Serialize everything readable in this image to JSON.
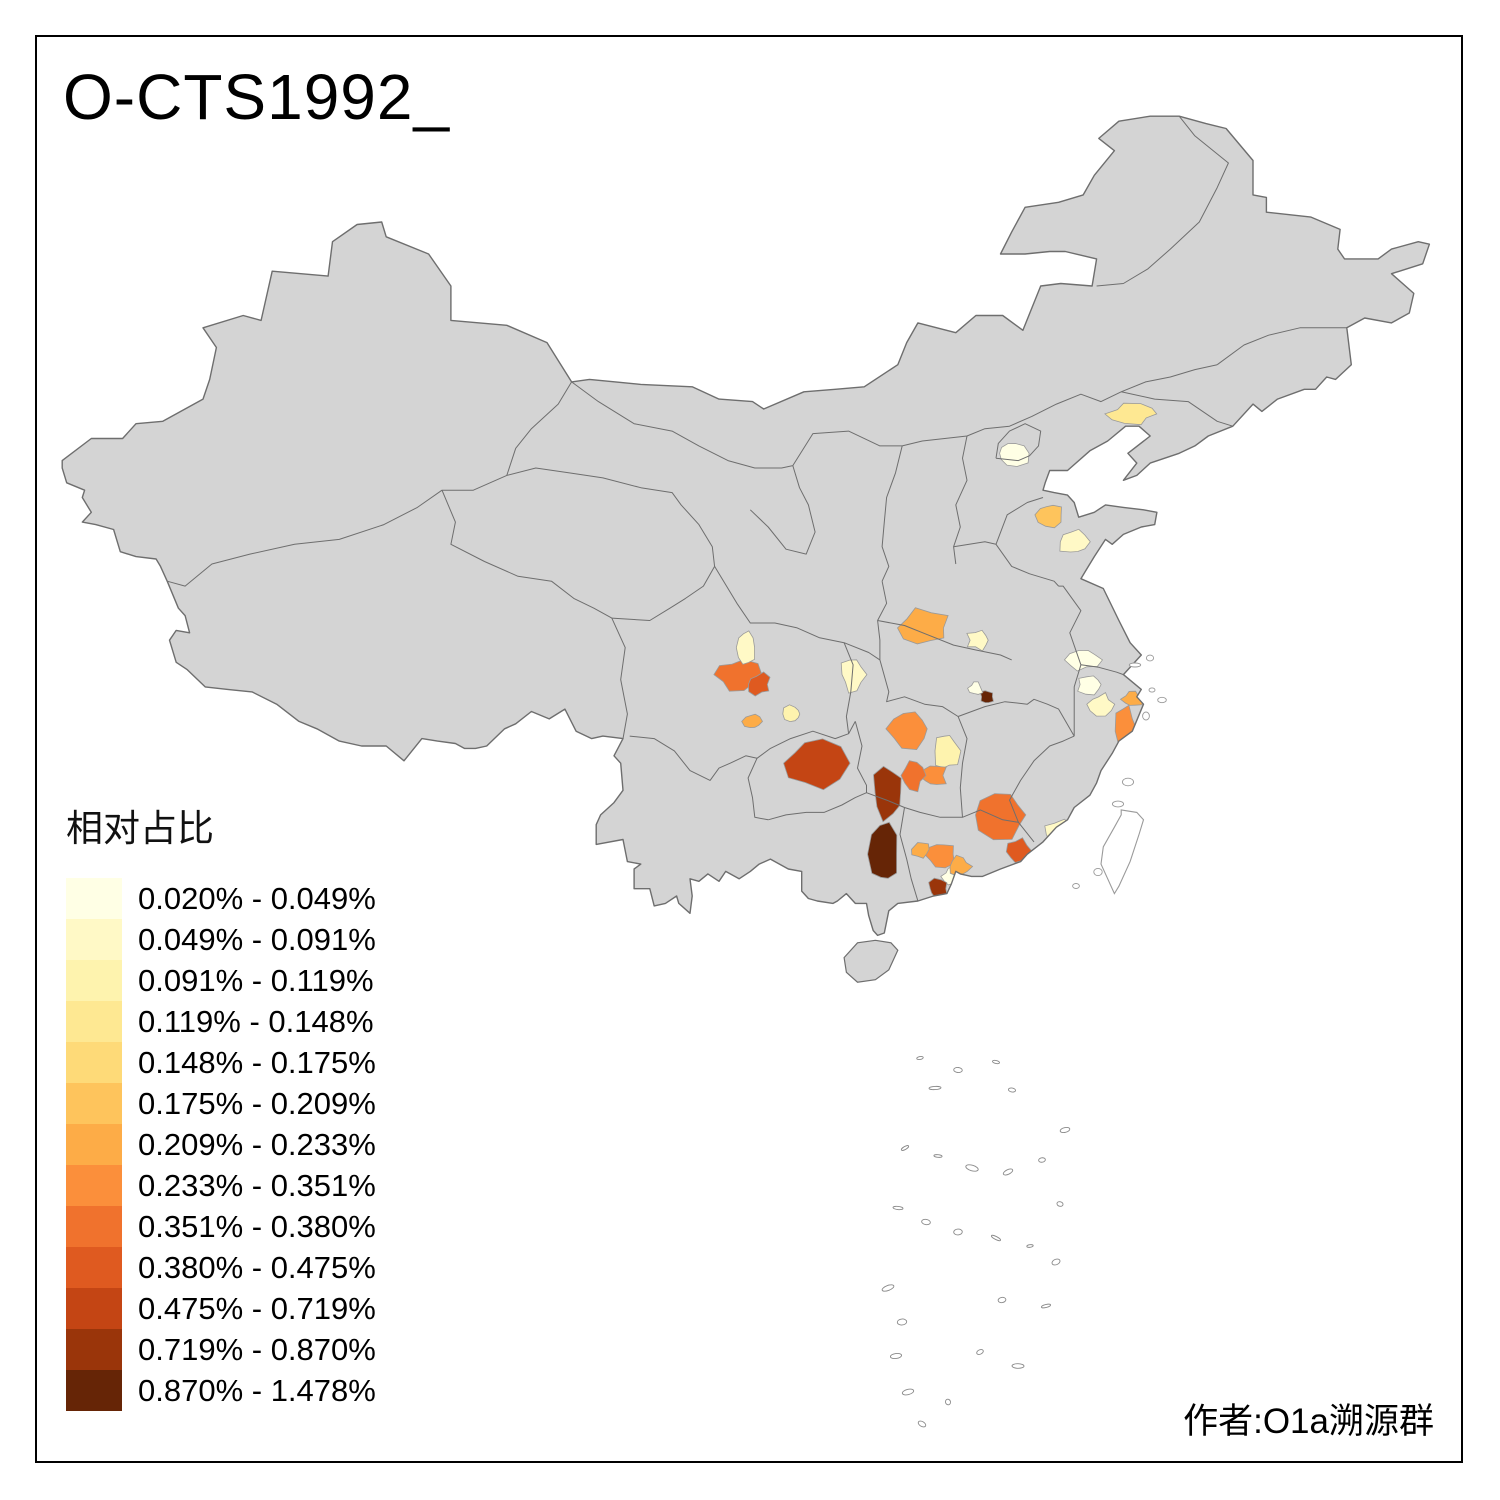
{
  "title": "O-CTS1992_",
  "credit": "作者:O1a溯源群",
  "legend": {
    "title": "相对占比",
    "items": [
      {
        "range": "0.020% - 0.049%",
        "color": "#FFFFE5"
      },
      {
        "range": "0.049% - 0.091%",
        "color": "#FFF9C6"
      },
      {
        "range": "0.091% - 0.119%",
        "color": "#FEF3AE"
      },
      {
        "range": "0.119% - 0.148%",
        "color": "#FEE892"
      },
      {
        "range": "0.148% - 0.175%",
        "color": "#FEDA78"
      },
      {
        "range": "0.175% - 0.209%",
        "color": "#FEC45C"
      },
      {
        "range": "0.209% - 0.233%",
        "color": "#FDAC47"
      },
      {
        "range": "0.233% - 0.351%",
        "color": "#FB8F3B"
      },
      {
        "range": "0.351% - 0.380%",
        "color": "#F0722D"
      },
      {
        "range": "0.380% - 0.475%",
        "color": "#DF5A20"
      },
      {
        "range": "0.475% - 0.719%",
        "color": "#C44514"
      },
      {
        "range": "0.719% - 0.870%",
        "color": "#9A350A"
      },
      {
        "range": "0.870% - 1.478%",
        "color": "#662506"
      }
    ]
  },
  "map": {
    "base_fill": "#D4D4D4",
    "border_color": "#6E6E6E",
    "region_border_color": "#9A9A9A",
    "sea_color": "#FFFFFF",
    "regions": [
      {
        "id": "region-beijing",
        "class": 1,
        "lon": 116.1,
        "lat": 39.8,
        "rx": 0.75,
        "ry": 0.55
      },
      {
        "id": "region-liaoning-west",
        "class": 4,
        "lon": 121.5,
        "lat": 41.4,
        "rx": 1.05,
        "ry": 0.38
      },
      {
        "id": "region-shandong-north",
        "class": 6,
        "lon": 117.8,
        "lat": 37.3,
        "rx": 0.55,
        "ry": 0.45
      },
      {
        "id": "region-shandong-center",
        "class": 2,
        "lon": 118.9,
        "lat": 36.2,
        "rx": 0.62,
        "ry": 0.5
      },
      {
        "id": "region-henan-southwest",
        "class": 7,
        "lon": 112.2,
        "lat": 32.7,
        "rx": 1.15,
        "ry": 0.75
      },
      {
        "id": "region-henan-south",
        "class": 2,
        "lon": 114.6,
        "lat": 32.2,
        "rx": 0.5,
        "ry": 0.38
      },
      {
        "id": "region-hubei-east-dark",
        "class": 13,
        "lon": 115.0,
        "lat": 29.9,
        "rx": 0.32,
        "ry": 0.28
      },
      {
        "id": "region-hubei-east-pale",
        "class": 1,
        "lon": 114.5,
        "lat": 30.25,
        "rx": 0.3,
        "ry": 0.25
      },
      {
        "id": "region-hunan-north",
        "class": 8,
        "lon": 111.5,
        "lat": 28.6,
        "rx": 1.0,
        "ry": 0.8
      },
      {
        "id": "region-hunan-east-pale",
        "class": 3,
        "lon": 113.2,
        "lat": 27.7,
        "rx": 0.5,
        "ry": 0.8
      },
      {
        "id": "region-hunan-south",
        "class": 8,
        "lon": 112.6,
        "lat": 26.7,
        "rx": 0.55,
        "ry": 0.45
      },
      {
        "id": "region-guizhou-north",
        "class": 11,
        "lon": 107.2,
        "lat": 27.2,
        "rx": 1.35,
        "ry": 1.0
      },
      {
        "id": "region-chengdu",
        "class": 9,
        "lon": 103.8,
        "lat": 30.8,
        "rx": 0.95,
        "ry": 0.62
      },
      {
        "id": "region-chengdu-east",
        "class": 10,
        "lon": 104.8,
        "lat": 30.4,
        "rx": 0.5,
        "ry": 0.42
      },
      {
        "id": "region-sichuan-north-pale",
        "class": 2,
        "lon": 104.2,
        "lat": 31.9,
        "rx": 0.45,
        "ry": 0.75
      },
      {
        "id": "region-sichuan-south",
        "class": 7,
        "lon": 104.5,
        "lat": 28.9,
        "rx": 0.38,
        "ry": 0.3
      },
      {
        "id": "region-chongqing-south-pale",
        "class": 3,
        "lon": 106.3,
        "lat": 29.2,
        "rx": 0.42,
        "ry": 0.35
      },
      {
        "id": "region-hubei-west-pale",
        "class": 2,
        "lon": 109.0,
        "lat": 30.8,
        "rx": 0.55,
        "ry": 0.68
      },
      {
        "id": "region-guangxi-north-dark",
        "class": 12,
        "lon": 110.6,
        "lat": 26.0,
        "rx": 0.68,
        "ry": 1.0
      },
      {
        "id": "region-guangxi-center-darkest",
        "class": 13,
        "lon": 110.4,
        "lat": 23.5,
        "rx": 0.6,
        "ry": 1.15
      },
      {
        "id": "region-hunan-southwest",
        "class": 9,
        "lon": 111.7,
        "lat": 26.7,
        "rx": 0.5,
        "ry": 0.55
      },
      {
        "id": "region-jiangxi-south",
        "class": 9,
        "lon": 115.7,
        "lat": 25.1,
        "rx": 1.15,
        "ry": 0.9
      },
      {
        "id": "region-guangdong-east",
        "class": 10,
        "lon": 116.4,
        "lat": 23.6,
        "rx": 0.5,
        "ry": 0.5
      },
      {
        "id": "region-guangdong-west",
        "class": 8,
        "lon": 112.9,
        "lat": 23.5,
        "rx": 0.62,
        "ry": 0.5
      },
      {
        "id": "region-guangzhou-pale",
        "class": 1,
        "lon": 113.4,
        "lat": 22.6,
        "rx": 0.4,
        "ry": 0.33
      },
      {
        "id": "region-guangdong-coast",
        "class": 8,
        "lon": 115.6,
        "lat": 22.3,
        "rx": 1.0,
        "ry": 0.35
      },
      {
        "id": "region-guangdong-southwest-dark",
        "class": 12,
        "lon": 112.8,
        "lat": 22.1,
        "rx": 0.45,
        "ry": 0.38
      },
      {
        "id": "region-fujian-south-pale",
        "class": 2,
        "lon": 118.2,
        "lat": 24.3,
        "rx": 0.7,
        "ry": 0.55
      },
      {
        "id": "region-xiamen",
        "class": 7,
        "lon": 118.7,
        "lat": 23.9,
        "rx": 0.3,
        "ry": 0.25
      },
      {
        "id": "region-zhejiang-coast",
        "class": 8,
        "lon": 121.2,
        "lat": 28.5,
        "rx": 0.45,
        "ry": 1.05
      },
      {
        "id": "region-ningbo",
        "class": 7,
        "lon": 121.5,
        "lat": 29.8,
        "rx": 0.42,
        "ry": 0.3
      },
      {
        "id": "region-zhejiang-north-pale",
        "class": 2,
        "lon": 120.1,
        "lat": 29.6,
        "rx": 0.55,
        "ry": 0.42
      },
      {
        "id": "region-hangzhou-pale",
        "class": 1,
        "lon": 119.6,
        "lat": 30.4,
        "rx": 0.55,
        "ry": 0.38
      },
      {
        "id": "region-jiangsu-south-pale",
        "class": 1,
        "lon": 119.3,
        "lat": 31.4,
        "rx": 0.7,
        "ry": 0.4
      },
      {
        "id": "region-wuzhou",
        "class": 7,
        "lon": 112.0,
        "lat": 23.7,
        "rx": 0.4,
        "ry": 0.33
      },
      {
        "id": "region-qingyuan",
        "class": 7,
        "lon": 113.8,
        "lat": 23.0,
        "rx": 0.45,
        "ry": 0.38
      }
    ]
  }
}
